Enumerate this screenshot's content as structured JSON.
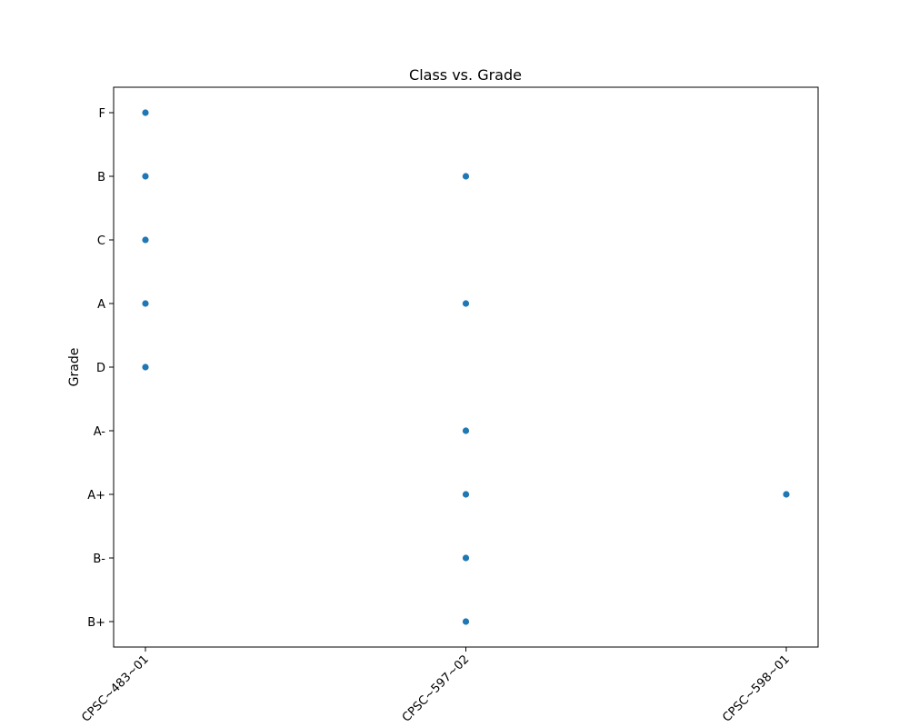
{
  "chart_data": {
    "type": "scatter",
    "title": "Class vs. Grade",
    "xlabel": "",
    "ylabel": "Grade",
    "categories": [
      "CPSC~483~01",
      "CPSC~597~02",
      "CPSC~598~01"
    ],
    "y_categories": [
      "F",
      "B",
      "C",
      "A",
      "D",
      "A-",
      "A+",
      "B-",
      "B+"
    ],
    "points": [
      {
        "x": "CPSC~483~01",
        "y": "F"
      },
      {
        "x": "CPSC~483~01",
        "y": "B"
      },
      {
        "x": "CPSC~483~01",
        "y": "C"
      },
      {
        "x": "CPSC~483~01",
        "y": "A"
      },
      {
        "x": "CPSC~483~01",
        "y": "D"
      },
      {
        "x": "CPSC~597~02",
        "y": "B"
      },
      {
        "x": "CPSC~597~02",
        "y": "A"
      },
      {
        "x": "CPSC~597~02",
        "y": "A-"
      },
      {
        "x": "CPSC~597~02",
        "y": "A+"
      },
      {
        "x": "CPSC~597~02",
        "y": "B-"
      },
      {
        "x": "CPSC~597~02",
        "y": "B+"
      },
      {
        "x": "CPSC~598~01",
        "y": "A+"
      }
    ],
    "grid": false,
    "legend": "none",
    "marker_color": "#1f77b4"
  }
}
